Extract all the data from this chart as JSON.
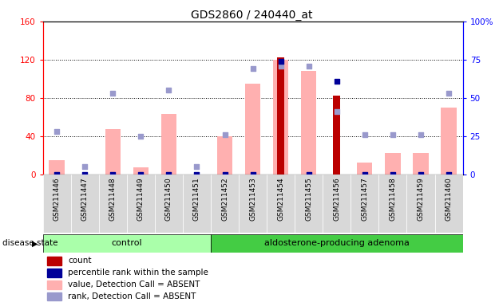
{
  "title": "GDS2860 / 240440_at",
  "samples": [
    "GSM211446",
    "GSM211447",
    "GSM211448",
    "GSM211449",
    "GSM211450",
    "GSM211451",
    "GSM211452",
    "GSM211453",
    "GSM211454",
    "GSM211455",
    "GSM211456",
    "GSM211457",
    "GSM211458",
    "GSM211459",
    "GSM211460"
  ],
  "n_control": 6,
  "n_adenoma": 9,
  "value_absent": [
    15,
    0,
    47,
    7,
    63,
    0,
    40,
    95,
    120,
    108,
    0,
    12,
    22,
    22,
    70
  ],
  "rank_absent_pct": [
    28,
    5,
    53,
    25,
    55,
    5,
    26,
    69,
    71,
    71,
    41,
    26,
    26,
    26,
    53
  ],
  "count": [
    0,
    0,
    0,
    0,
    0,
    0,
    0,
    0,
    122,
    0,
    82,
    0,
    0,
    0,
    0
  ],
  "percentile_rank_pct": [
    0,
    0,
    0,
    0,
    0,
    0,
    0,
    0,
    74,
    0,
    61,
    0,
    0,
    0,
    0
  ],
  "ylim_left": [
    0,
    160
  ],
  "ylim_right": [
    0,
    100
  ],
  "yticks_left": [
    0,
    40,
    80,
    120,
    160
  ],
  "yticks_right": [
    0,
    25,
    50,
    75,
    100
  ],
  "color_count": "#bb0000",
  "color_percentile": "#000099",
  "color_value_absent": "#ffb0b0",
  "color_rank_absent": "#9999cc",
  "bg_cell": "#d8d8d8",
  "group_control_color": "#aaffaa",
  "group_adenoma_color": "#44cc44",
  "legend_items": [
    {
      "color": "#bb0000",
      "label": "count"
    },
    {
      "color": "#000099",
      "label": "percentile rank within the sample"
    },
    {
      "color": "#ffb0b0",
      "label": "value, Detection Call = ABSENT"
    },
    {
      "color": "#9999cc",
      "label": "rank, Detection Call = ABSENT"
    }
  ]
}
